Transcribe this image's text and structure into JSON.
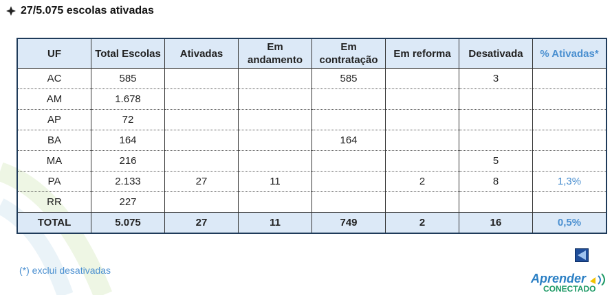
{
  "header": {
    "title": "27/5.075 escolas ativadas"
  },
  "table": {
    "columns": [
      "UF",
      "Total Escolas",
      "Ativadas",
      "Em andamento",
      "Em contratação",
      "Em reforma",
      "Desativada",
      "% Ativadas*"
    ],
    "rows": [
      [
        "AC",
        "585",
        null,
        null,
        "585",
        null,
        "3",
        null
      ],
      [
        "AM",
        "1.678",
        null,
        null,
        null,
        null,
        null,
        null
      ],
      [
        "AP",
        "72",
        null,
        null,
        null,
        null,
        null,
        null
      ],
      [
        "BA",
        "164",
        null,
        null,
        "164",
        null,
        null,
        null
      ],
      [
        "MA",
        "216",
        null,
        null,
        null,
        null,
        "5",
        null
      ],
      [
        "PA",
        "2.133",
        "27",
        "11",
        null,
        "2",
        "8",
        "1,3%"
      ],
      [
        "RR",
        "227",
        null,
        null,
        null,
        null,
        null,
        null
      ]
    ],
    "total": [
      "TOTAL",
      "5.075",
      "27",
      "11",
      "749",
      "2",
      "16",
      "0,5%"
    ]
  },
  "footnote": "(*) exclui desativadas",
  "logo": {
    "line1": "Aprender",
    "line2": "CONECTADO"
  }
}
